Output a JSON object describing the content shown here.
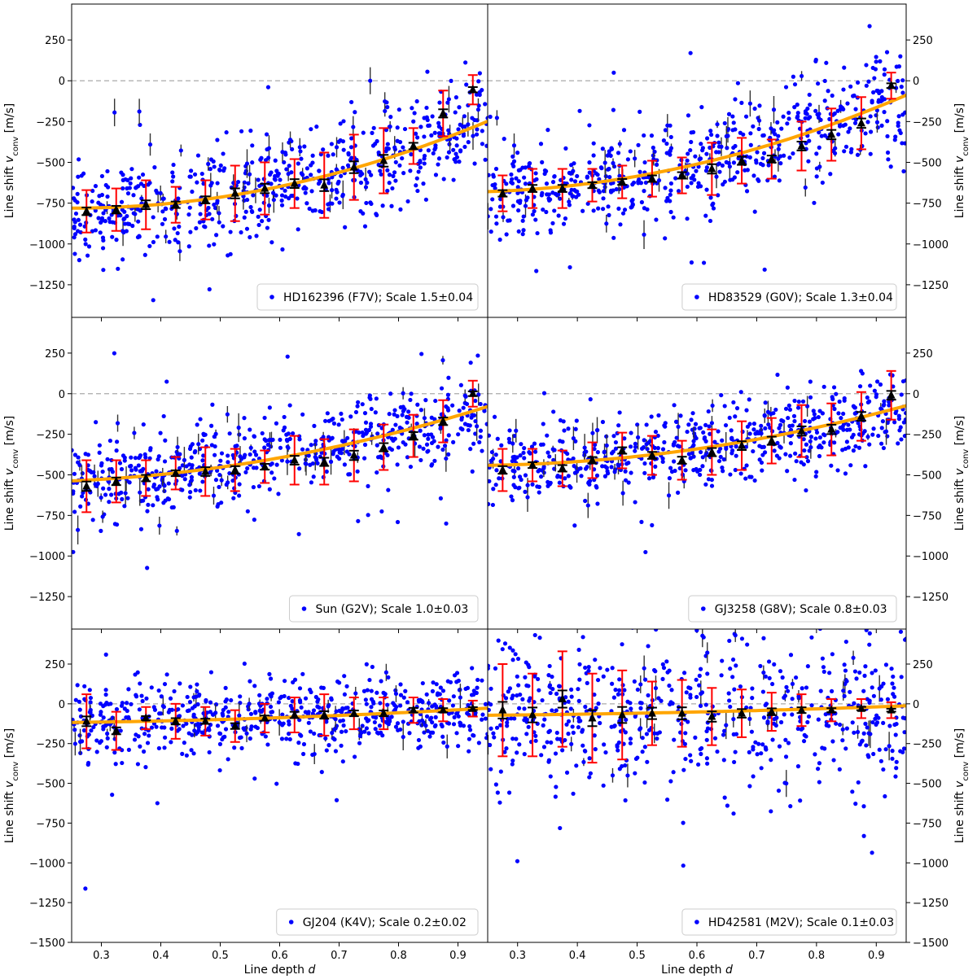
{
  "chart_data": {
    "type": "scatter",
    "layout": "3x2 grid of panels with shared axes",
    "xlabel": "Line depth",
    "xlabel_var": "d",
    "ylabel": "Line shift",
    "ylabel_var": "v",
    "ylabel_sub": "conv",
    "ylabel_unit": "[m/s]",
    "xlim": [
      0.25,
      0.95
    ],
    "ylim": [
      -1450,
      470
    ],
    "ylim_bottom_row": [
      -1500,
      470
    ],
    "x_ticks": [
      0.3,
      0.4,
      0.5,
      0.6,
      0.7,
      0.8,
      0.9
    ],
    "x_tick_labels": [
      "0.3",
      "0.4",
      "0.5",
      "0.6",
      "0.7",
      "0.8",
      "0.9"
    ],
    "y_ticks": [
      -1250,
      -1000,
      -750,
      -500,
      -250,
      0,
      250
    ],
    "y_tick_labels": [
      "−1250",
      "−1000",
      "−750",
      "−500",
      "−250",
      "0",
      "250"
    ],
    "y_ticks_bottom_row": [
      -1500,
      -1250,
      -1000,
      -750,
      -500,
      -250,
      0,
      250
    ],
    "y_tick_labels_bottom_row": [
      "−1500",
      "−1250",
      "−1000",
      "−750",
      "−500",
      "−250",
      "0",
      "250"
    ],
    "reference_line_y": 0,
    "legend_loc": "lower right",
    "colors": {
      "points": "#0000ff",
      "fit": "#ffa500",
      "bin_error": "#ff0000",
      "bin_marker": "#000000",
      "point_error": "#333333",
      "reference": "#aaaaaa"
    },
    "bin_centers": [
      0.275,
      0.325,
      0.375,
      0.425,
      0.475,
      0.525,
      0.575,
      0.625,
      0.675,
      0.725,
      0.775,
      0.825,
      0.875,
      0.925
    ],
    "panels": [
      {
        "star": "HD162396",
        "spectral_type": "F7V",
        "scale": "1.5±0.04",
        "legend": "HD162396 (F7V); Scale 1.5±0.04",
        "bin_values": [
          -800,
          -790,
          -760,
          -760,
          -730,
          -690,
          -660,
          -630,
          -640,
          -530,
          -490,
          -400,
          -200,
          -55
        ],
        "bin_errors": [
          130,
          130,
          150,
          110,
          120,
          170,
          160,
          150,
          200,
          200,
          200,
          110,
          140,
          90
        ],
        "fit_coeffs": [
          -780.6,
          -4.4,
          1093.4
        ],
        "fit_center": 0.25,
        "scatter_sigma": 160
      },
      {
        "star": "HD83529",
        "spectral_type": "G0V",
        "scale": "1.3±0.04",
        "legend": "HD83529 (G0V); Scale 1.3±0.04",
        "bin_values": [
          -690,
          -660,
          -660,
          -640,
          -620,
          -600,
          -580,
          -540,
          -490,
          -480,
          -400,
          -330,
          -260,
          -30
        ],
        "bin_errors": [
          110,
          120,
          120,
          100,
          100,
          110,
          110,
          160,
          140,
          120,
          150,
          160,
          160,
          80
        ],
        "fit_coeffs": [
          -679.3,
          118.5,
          1037.2
        ],
        "fit_center": 0.25,
        "scatter_sigma": 150
      },
      {
        "star": "Sun",
        "spectral_type": "G2V",
        "scale": "1.0±0.03",
        "legend": "Sun (G2V); Scale 1.0±0.03",
        "bin_values": [
          -570,
          -540,
          -520,
          -490,
          -480,
          -470,
          -450,
          -410,
          -420,
          -380,
          -330,
          -260,
          -170,
          0
        ],
        "bin_errors": [
          160,
          130,
          110,
          100,
          150,
          130,
          100,
          150,
          140,
          160,
          140,
          130,
          130,
          80
        ],
        "fit_coeffs": [
          -537.2,
          158.7,
          708.1
        ],
        "fit_center": 0.25,
        "scatter_sigma": 140
      },
      {
        "star": "GJ3258",
        "spectral_type": "G8V",
        "scale": "0.8±0.03",
        "legend": "GJ3258 (G8V); Scale 0.8±0.03",
        "bin_values": [
          -470,
          -440,
          -460,
          -410,
          -350,
          -380,
          -410,
          -360,
          -320,
          -290,
          -230,
          -220,
          -140,
          -10
        ],
        "bin_errors": [
          130,
          100,
          110,
          110,
          110,
          120,
          120,
          140,
          150,
          140,
          160,
          160,
          150,
          150
        ],
        "fit_coeffs": [
          -441.2,
          52.3,
          674.8
        ],
        "fit_center": 0.25,
        "scatter_sigma": 130
      },
      {
        "star": "GJ204",
        "spectral_type": "K4V",
        "scale": "0.2±0.02",
        "legend": "GJ204 (K4V); Scale 0.2±0.02",
        "bin_values": [
          -110,
          -170,
          -90,
          -110,
          -110,
          -140,
          -90,
          -70,
          -70,
          -60,
          -60,
          -40,
          -40,
          -30
        ],
        "bin_errors": [
          170,
          120,
          70,
          110,
          90,
          100,
          90,
          110,
          130,
          100,
          100,
          80,
          70,
          50
        ],
        "fit_coeffs": [
          -117.1,
          43.2,
          121.7
        ],
        "fit_center": 0.25,
        "scatter_sigma": 120
      },
      {
        "star": "HD42581",
        "spectral_type": "M2V",
        "scale": "0.1±0.03",
        "legend": "HD42581 (M2V); Scale 0.1±0.03",
        "bin_values": [
          -40,
          -70,
          30,
          -90,
          -70,
          -60,
          -60,
          -80,
          -60,
          -50,
          -40,
          -40,
          -30,
          -40
        ],
        "bin_errors": [
          290,
          260,
          300,
          280,
          280,
          200,
          210,
          180,
          150,
          120,
          100,
          70,
          60,
          50
        ],
        "fit_coeffs": [
          -72.0,
          32.7,
          74.1
        ],
        "fit_center": 0.25,
        "scatter_sigma": 260
      }
    ]
  }
}
